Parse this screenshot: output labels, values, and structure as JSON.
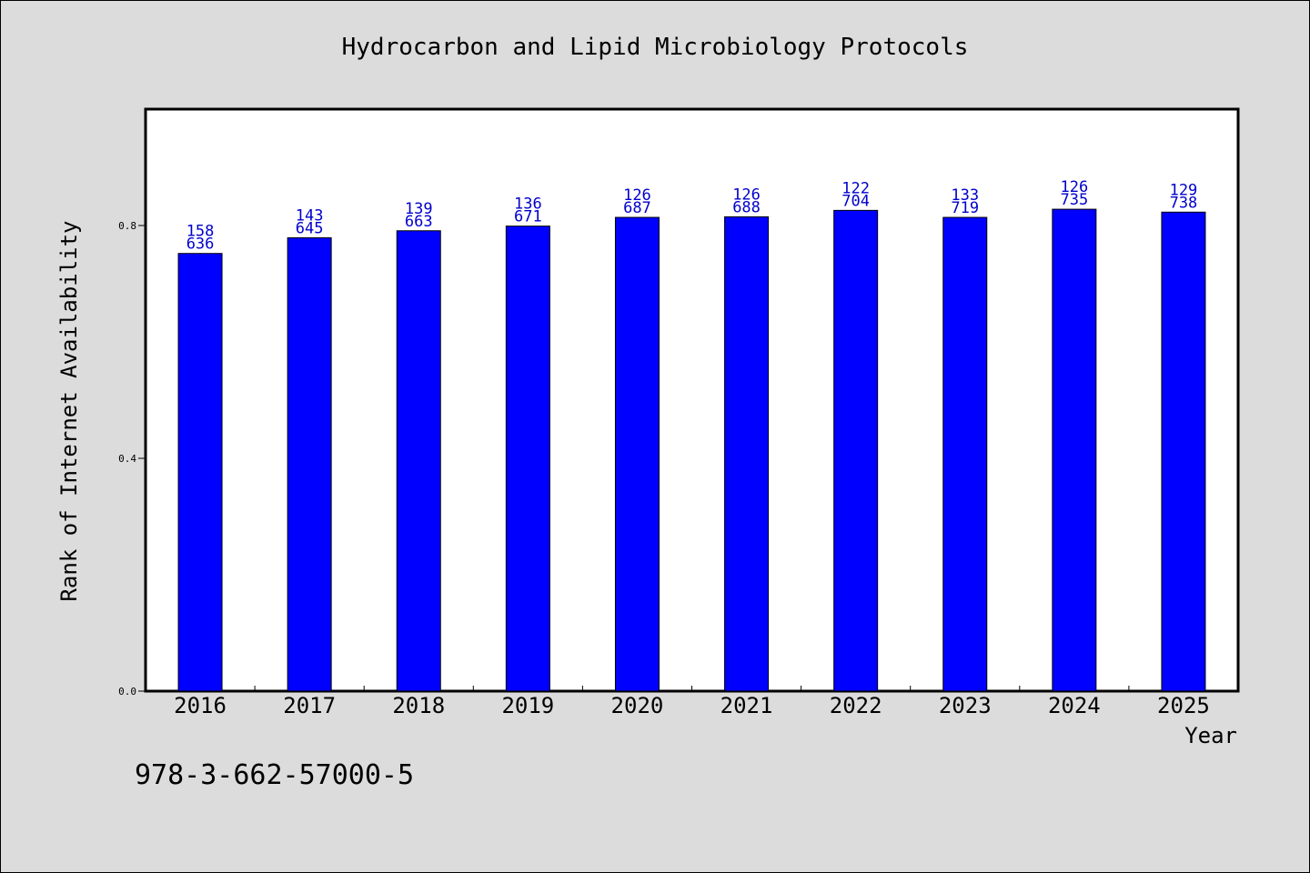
{
  "chart_data": {
    "type": "bar",
    "title": "Hydrocarbon and Lipid Microbiology Protocols",
    "xlabel": "Year",
    "ylabel": "Rank of Internet Availability",
    "footnote": "978-3-662-57000-5",
    "categories": [
      "2016",
      "2017",
      "2018",
      "2019",
      "2020",
      "2021",
      "2022",
      "2023",
      "2024",
      "2025"
    ],
    "values": [
      0.752,
      0.779,
      0.791,
      0.799,
      0.814,
      0.815,
      0.826,
      0.814,
      0.828,
      0.823
    ],
    "labels_top": [
      "158",
      "143",
      "139",
      "136",
      "126",
      "126",
      "122",
      "133",
      "126",
      "129"
    ],
    "labels_bottom": [
      "636",
      "645",
      "663",
      "671",
      "687",
      "688",
      "704",
      "719",
      "735",
      "738"
    ],
    "ylim": [
      0,
      1.0
    ],
    "yticks": [
      "0.0",
      "0.4",
      "0.8"
    ],
    "ytick_values": [
      0,
      0.4,
      0.8
    ],
    "grid": false,
    "legend": "none",
    "colors": {
      "bar": "#0000ff",
      "label": "#0000cc",
      "background": "#dcdcdc",
      "plot_background": "#ffffff",
      "axis": "#000000"
    }
  }
}
